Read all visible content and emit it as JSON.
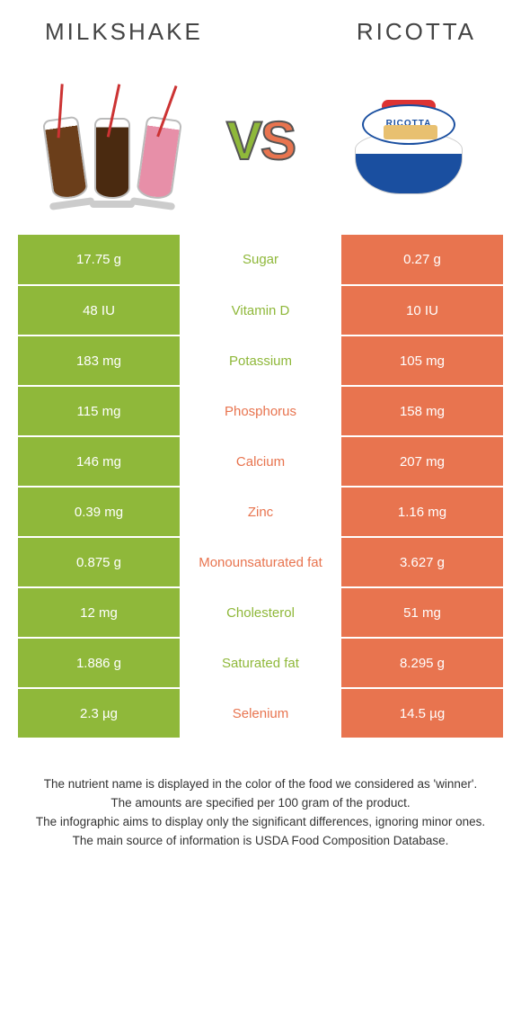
{
  "colors": {
    "left": "#8fb83a",
    "right": "#e8744f",
    "text": "#333333",
    "background": "#ffffff"
  },
  "header": {
    "left_title": "Milkshake",
    "right_title": "Ricotta",
    "vs": {
      "v": "V",
      "s": "S"
    },
    "ricotta_label": "RICOTTA"
  },
  "rows": [
    {
      "left": "17.75 g",
      "name": "Sugar",
      "right": "0.27 g",
      "winner": "left"
    },
    {
      "left": "48 IU",
      "name": "Vitamin D",
      "right": "10 IU",
      "winner": "left"
    },
    {
      "left": "183 mg",
      "name": "Potassium",
      "right": "105 mg",
      "winner": "left"
    },
    {
      "left": "115 mg",
      "name": "Phosphorus",
      "right": "158 mg",
      "winner": "right"
    },
    {
      "left": "146 mg",
      "name": "Calcium",
      "right": "207 mg",
      "winner": "right"
    },
    {
      "left": "0.39 mg",
      "name": "Zinc",
      "right": "1.16 mg",
      "winner": "right"
    },
    {
      "left": "0.875 g",
      "name": "Monounsaturated fat",
      "right": "3.627 g",
      "winner": "right"
    },
    {
      "left": "12 mg",
      "name": "Cholesterol",
      "right": "51 mg",
      "winner": "left"
    },
    {
      "left": "1.886 g",
      "name": "Saturated fat",
      "right": "8.295 g",
      "winner": "left"
    },
    {
      "left": "2.3 µg",
      "name": "Selenium",
      "right": "14.5 µg",
      "winner": "right"
    }
  ],
  "footer": {
    "line1": "The nutrient name is displayed in the color of the food we considered as 'winner'.",
    "line2": "The amounts are specified per 100 gram of the product.",
    "line3": "The infographic aims to display only the significant differences, ignoring minor ones.",
    "line4": "The main source of information is USDA Food Composition Database."
  }
}
